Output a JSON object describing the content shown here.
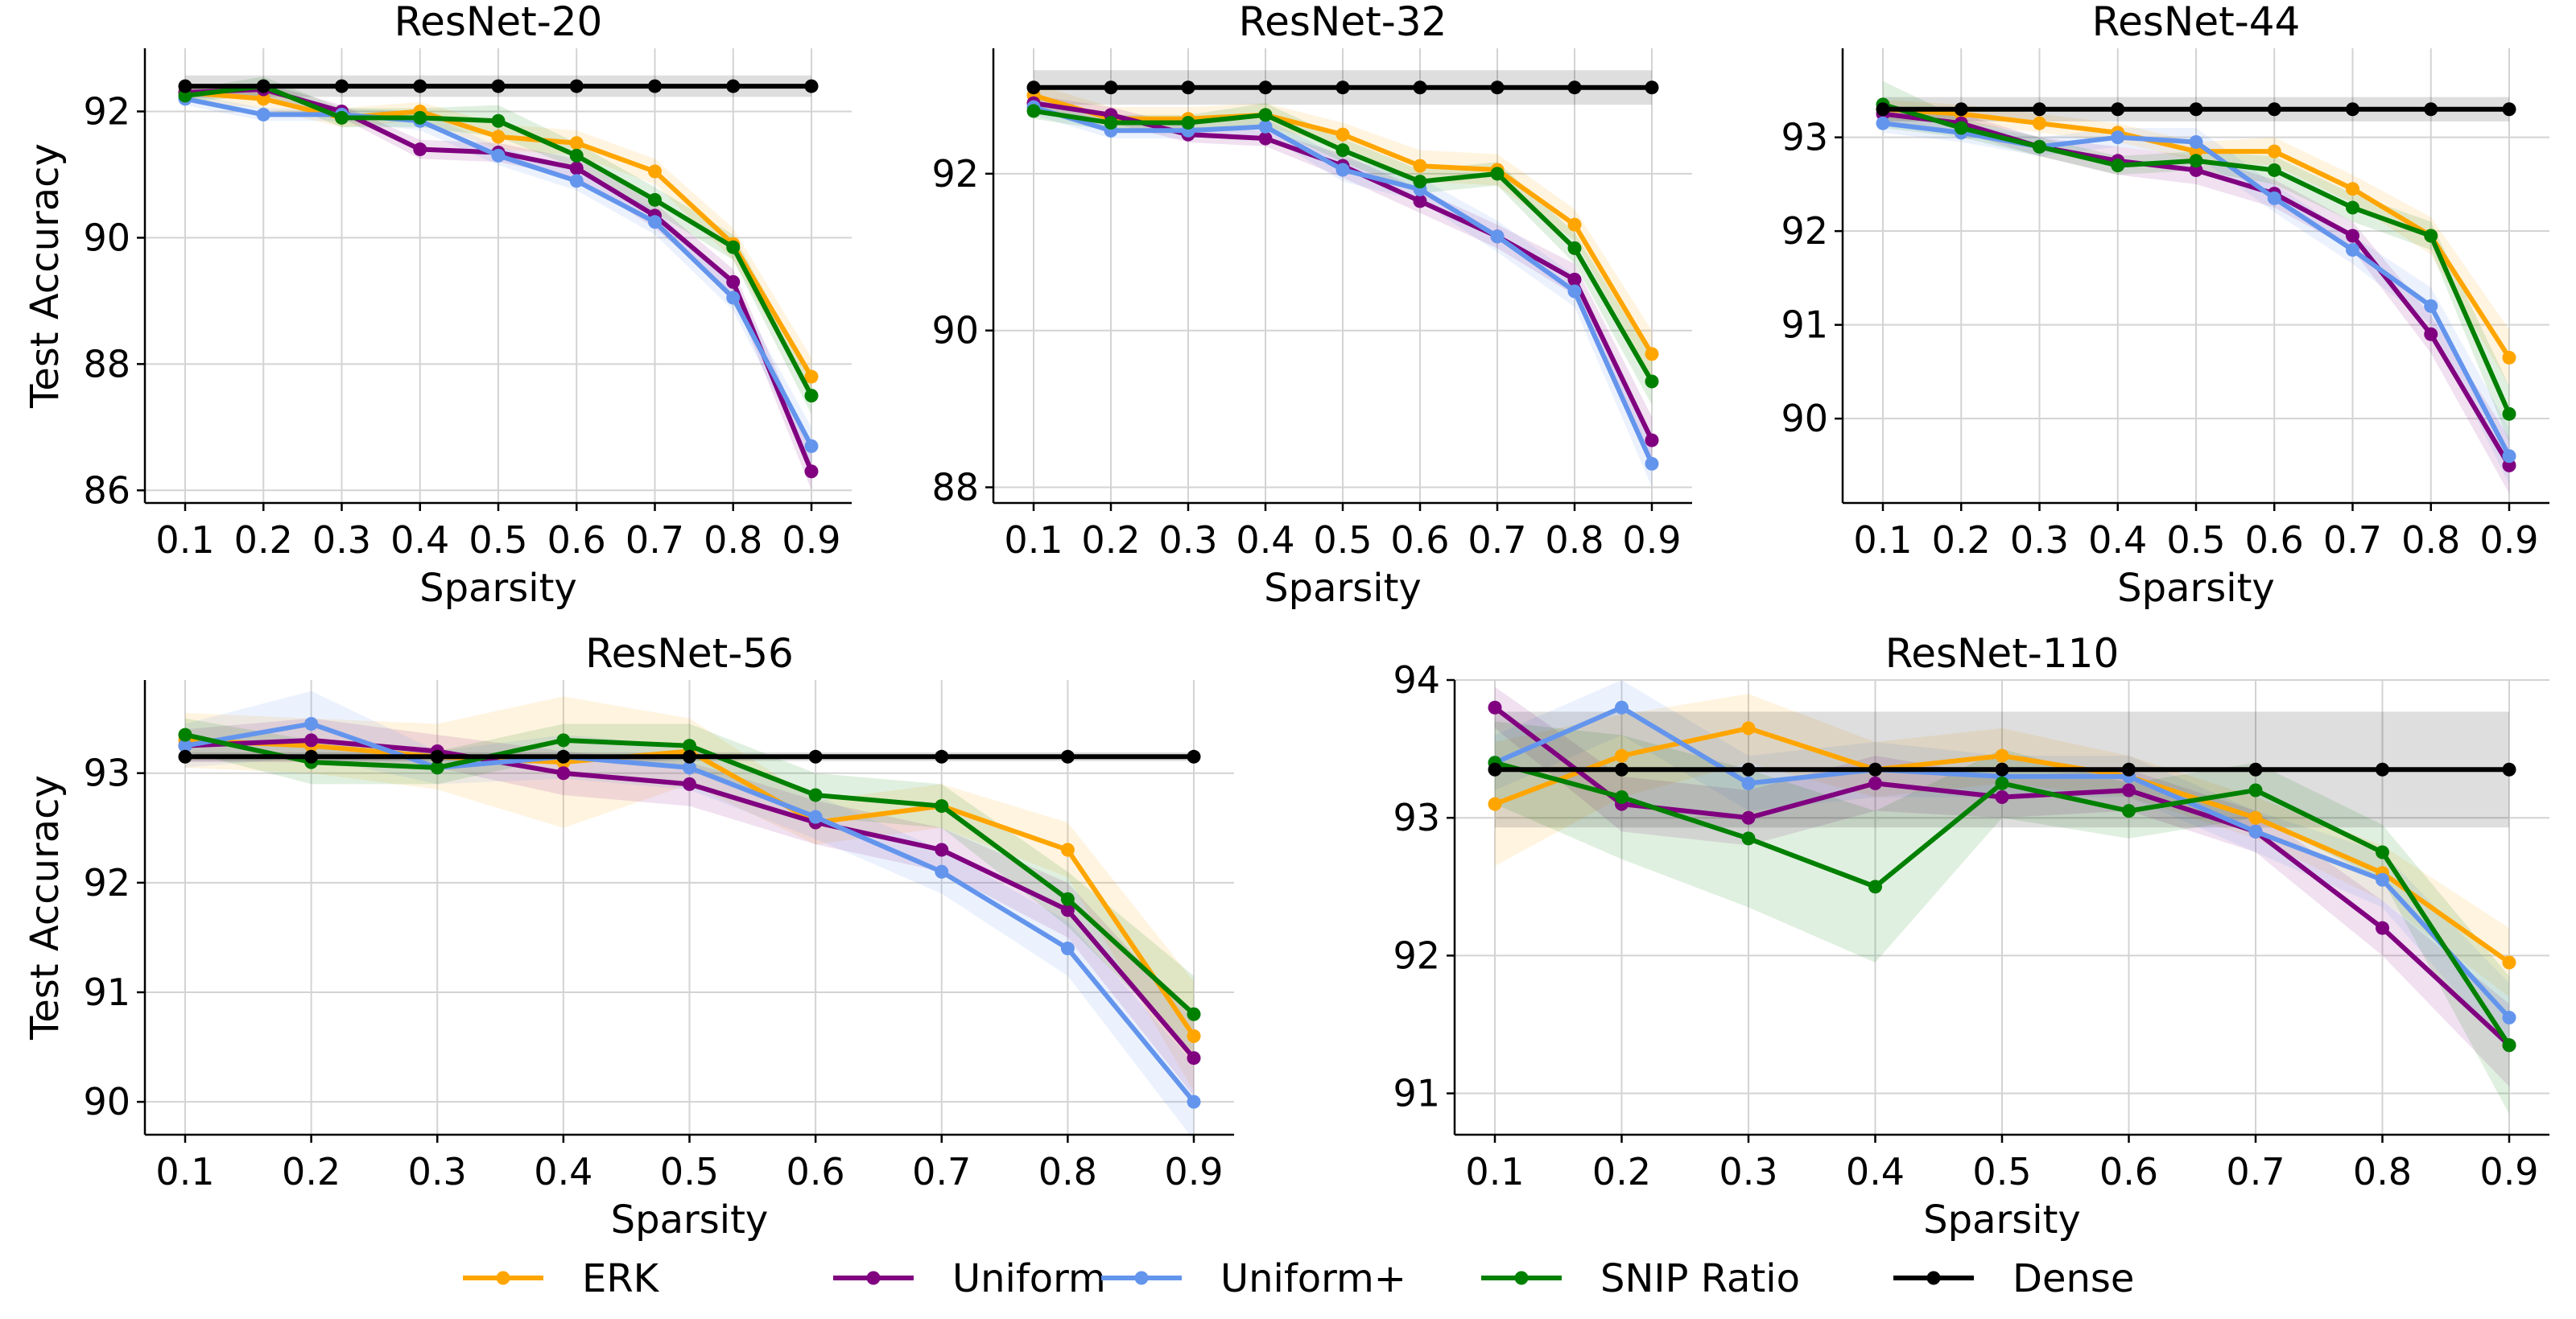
{
  "legend": [
    {
      "label": "ERK",
      "color": "#FFA500"
    },
    {
      "label": "Uniform",
      "color": "#800080"
    },
    {
      "label": "Uniform+",
      "color": "#6495ED"
    },
    {
      "label": "SNIP Ratio",
      "color": "#008000"
    },
    {
      "label": "Dense",
      "color": "#000000"
    }
  ],
  "chart_data": [
    {
      "type": "line",
      "title": "ResNet-20",
      "xlabel": "Sparsity",
      "ylabel": "Test Accuracy",
      "x": [
        0.1,
        0.2,
        0.3,
        0.4,
        0.5,
        0.6,
        0.7,
        0.8,
        0.9
      ],
      "xticks": [
        "0.1",
        "0.2",
        "0.3",
        "0.4",
        "0.5",
        "0.6",
        "0.7",
        "0.8",
        "0.9"
      ],
      "yticks": [
        "86",
        "88",
        "90",
        "92"
      ],
      "ylim": [
        85.8,
        93.0
      ],
      "grid": true,
      "series": [
        {
          "name": "ERK",
          "color": "#FFA500",
          "values": [
            92.3,
            92.2,
            91.9,
            92.0,
            91.6,
            91.5,
            91.05,
            89.9,
            87.8
          ],
          "band": [
            0.15,
            0.15,
            0.15,
            0.15,
            0.2,
            0.2,
            0.2,
            0.25,
            0.3
          ]
        },
        {
          "name": "Uniform",
          "color": "#800080",
          "values": [
            92.3,
            92.35,
            92.0,
            91.4,
            91.35,
            91.1,
            90.35,
            89.3,
            86.3
          ],
          "band": [
            0.1,
            0.1,
            0.1,
            0.15,
            0.15,
            0.15,
            0.2,
            0.2,
            0.3
          ]
        },
        {
          "name": "Uniform+",
          "color": "#6495ED",
          "values": [
            92.2,
            91.95,
            91.95,
            91.85,
            91.3,
            90.9,
            90.25,
            89.05,
            86.7
          ],
          "band": [
            0.1,
            0.1,
            0.1,
            0.15,
            0.15,
            0.15,
            0.2,
            0.2,
            0.3
          ]
        },
        {
          "name": "SNIP Ratio",
          "color": "#008000",
          "values": [
            92.25,
            92.4,
            91.9,
            91.9,
            91.85,
            91.3,
            90.6,
            89.85,
            87.5
          ],
          "band": [
            0.1,
            0.15,
            0.15,
            0.15,
            0.25,
            0.2,
            0.2,
            0.2,
            0.3
          ]
        },
        {
          "name": "Dense",
          "color": "#000000",
          "values": [
            92.4,
            92.4,
            92.4,
            92.4,
            92.4,
            92.4,
            92.4,
            92.4,
            92.4
          ],
          "band": [
            0.17,
            0.17,
            0.17,
            0.17,
            0.17,
            0.17,
            0.17,
            0.17,
            0.17
          ]
        }
      ]
    },
    {
      "type": "line",
      "title": "ResNet-32",
      "xlabel": "Sparsity",
      "ylabel": "",
      "x": [
        0.1,
        0.2,
        0.3,
        0.4,
        0.5,
        0.6,
        0.7,
        0.8,
        0.9
      ],
      "xticks": [
        "0.1",
        "0.2",
        "0.3",
        "0.4",
        "0.5",
        "0.6",
        "0.7",
        "0.8",
        "0.9"
      ],
      "yticks": [
        "88",
        "90",
        "92"
      ],
      "ylim": [
        87.8,
        93.6
      ],
      "grid": true,
      "series": [
        {
          "name": "ERK",
          "color": "#FFA500",
          "values": [
            93.0,
            92.7,
            92.7,
            92.75,
            92.5,
            92.1,
            92.05,
            91.35,
            89.7
          ],
          "band": [
            0.15,
            0.15,
            0.15,
            0.15,
            0.15,
            0.2,
            0.2,
            0.2,
            0.3
          ]
        },
        {
          "name": "Uniform",
          "color": "#800080",
          "values": [
            92.9,
            92.75,
            92.5,
            92.45,
            92.1,
            91.65,
            91.2,
            90.65,
            88.6
          ],
          "band": [
            0.1,
            0.1,
            0.1,
            0.1,
            0.15,
            0.15,
            0.15,
            0.2,
            0.3
          ]
        },
        {
          "name": "Uniform+",
          "color": "#6495ED",
          "values": [
            92.85,
            92.55,
            92.55,
            92.6,
            92.05,
            91.8,
            91.2,
            90.5,
            88.3
          ],
          "band": [
            0.1,
            0.1,
            0.1,
            0.1,
            0.15,
            0.15,
            0.2,
            0.2,
            0.3
          ]
        },
        {
          "name": "SNIP Ratio",
          "color": "#008000",
          "values": [
            92.8,
            92.65,
            92.65,
            92.75,
            92.3,
            91.9,
            92.0,
            91.05,
            89.35
          ],
          "band": [
            0.1,
            0.1,
            0.1,
            0.15,
            0.15,
            0.15,
            0.15,
            0.2,
            0.3
          ]
        },
        {
          "name": "Dense",
          "color": "#000000",
          "values": [
            93.1,
            93.1,
            93.1,
            93.1,
            93.1,
            93.1,
            93.1,
            93.1,
            93.1
          ],
          "band": [
            0.22,
            0.22,
            0.22,
            0.22,
            0.22,
            0.22,
            0.22,
            0.22,
            0.22
          ]
        }
      ]
    },
    {
      "type": "line",
      "title": "ResNet-44",
      "xlabel": "Sparsity",
      "ylabel": "",
      "x": [
        0.1,
        0.2,
        0.3,
        0.4,
        0.5,
        0.6,
        0.7,
        0.8,
        0.9
      ],
      "xticks": [
        "0.1",
        "0.2",
        "0.3",
        "0.4",
        "0.5",
        "0.6",
        "0.7",
        "0.8",
        "0.9"
      ],
      "yticks": [
        "90",
        "91",
        "92",
        "93"
      ],
      "ylim": [
        89.1,
        93.95
      ],
      "grid": true,
      "series": [
        {
          "name": "ERK",
          "color": "#FFA500",
          "values": [
            93.3,
            93.25,
            93.15,
            93.05,
            92.85,
            92.85,
            92.45,
            91.95,
            90.65
          ],
          "band": [
            0.1,
            0.1,
            0.1,
            0.1,
            0.1,
            0.15,
            0.15,
            0.2,
            0.3
          ]
        },
        {
          "name": "Uniform",
          "color": "#800080",
          "values": [
            93.25,
            93.15,
            92.9,
            92.75,
            92.65,
            92.4,
            91.95,
            90.9,
            89.5
          ],
          "band": [
            0.1,
            0.1,
            0.1,
            0.15,
            0.15,
            0.15,
            0.15,
            0.2,
            0.3
          ]
        },
        {
          "name": "Uniform+",
          "color": "#6495ED",
          "values": [
            93.15,
            93.05,
            92.9,
            93.0,
            92.95,
            92.35,
            91.8,
            91.2,
            89.6
          ],
          "band": [
            0.1,
            0.1,
            0.1,
            0.1,
            0.15,
            0.15,
            0.15,
            0.2,
            0.3
          ]
        },
        {
          "name": "SNIP Ratio",
          "color": "#008000",
          "values": [
            93.35,
            93.1,
            92.9,
            92.7,
            92.75,
            92.65,
            92.25,
            91.95,
            90.05
          ],
          "band": [
            0.25,
            0.1,
            0.1,
            0.1,
            0.1,
            0.15,
            0.15,
            0.15,
            0.3
          ]
        },
        {
          "name": "Dense",
          "color": "#000000",
          "values": [
            93.3,
            93.3,
            93.3,
            93.3,
            93.3,
            93.3,
            93.3,
            93.3,
            93.3
          ],
          "band": [
            0.13,
            0.13,
            0.13,
            0.13,
            0.13,
            0.13,
            0.13,
            0.13,
            0.13
          ]
        }
      ]
    },
    {
      "type": "line",
      "title": "ResNet-56",
      "xlabel": "Sparsity",
      "ylabel": "Test Accuracy",
      "x": [
        0.1,
        0.2,
        0.3,
        0.4,
        0.5,
        0.6,
        0.7,
        0.8,
        0.9
      ],
      "xticks": [
        "0.1",
        "0.2",
        "0.3",
        "0.4",
        "0.5",
        "0.6",
        "0.7",
        "0.8",
        "0.9"
      ],
      "yticks": [
        "90",
        "91",
        "92",
        "93"
      ],
      "ylim": [
        89.7,
        93.85
      ],
      "grid": true,
      "series": [
        {
          "name": "ERK",
          "color": "#FFA500",
          "values": [
            93.3,
            93.25,
            93.15,
            93.1,
            93.2,
            92.55,
            92.7,
            92.3,
            90.6
          ],
          "band": [
            0.25,
            0.25,
            0.3,
            0.6,
            0.3,
            0.2,
            0.2,
            0.25,
            0.5
          ]
        },
        {
          "name": "Uniform",
          "color": "#800080",
          "values": [
            93.25,
            93.3,
            93.2,
            93.0,
            92.9,
            92.55,
            92.3,
            91.75,
            90.4
          ],
          "band": [
            0.15,
            0.2,
            0.15,
            0.2,
            0.2,
            0.2,
            0.2,
            0.25,
            0.35
          ]
        },
        {
          "name": "Uniform+",
          "color": "#6495ED",
          "values": [
            93.25,
            93.45,
            93.05,
            93.15,
            93.05,
            92.6,
            92.1,
            91.4,
            90.0
          ],
          "band": [
            0.2,
            0.3,
            0.15,
            0.2,
            0.2,
            0.2,
            0.2,
            0.25,
            0.35
          ]
        },
        {
          "name": "SNIP Ratio",
          "color": "#008000",
          "values": [
            93.35,
            93.1,
            93.05,
            93.3,
            93.25,
            92.8,
            92.7,
            91.85,
            90.8
          ],
          "band": [
            0.15,
            0.2,
            0.15,
            0.15,
            0.2,
            0.2,
            0.2,
            0.25,
            0.35
          ]
        },
        {
          "name": "Dense",
          "color": "#000000",
          "values": [
            93.15,
            93.15,
            93.15,
            93.15,
            93.15,
            93.15,
            93.15,
            93.15,
            93.15
          ],
          "band": [
            0.04,
            0.04,
            0.04,
            0.04,
            0.04,
            0.04,
            0.04,
            0.04,
            0.04
          ]
        }
      ]
    },
    {
      "type": "line",
      "title": "ResNet-110",
      "xlabel": "Sparsity",
      "ylabel": "",
      "x": [
        0.1,
        0.2,
        0.3,
        0.4,
        0.5,
        0.6,
        0.7,
        0.8,
        0.9
      ],
      "xticks": [
        "0.1",
        "0.2",
        "0.3",
        "0.4",
        "0.5",
        "0.6",
        "0.7",
        "0.8",
        "0.9"
      ],
      "yticks": [
        "91",
        "92",
        "93",
        "94"
      ],
      "ylim": [
        90.7,
        94.0
      ],
      "grid": true,
      "series": [
        {
          "name": "ERK",
          "color": "#FFA500",
          "values": [
            93.1,
            93.45,
            93.65,
            93.35,
            93.45,
            93.3,
            93.0,
            92.6,
            91.95
          ],
          "band": [
            0.45,
            0.3,
            0.25,
            0.2,
            0.2,
            0.15,
            0.15,
            0.2,
            0.25
          ]
        },
        {
          "name": "Uniform",
          "color": "#800080",
          "values": [
            93.8,
            93.1,
            93.0,
            93.25,
            93.15,
            93.2,
            92.9,
            92.2,
            91.35
          ],
          "band": [
            0.15,
            0.2,
            0.2,
            0.2,
            0.15,
            0.15,
            0.15,
            0.2,
            0.3
          ]
        },
        {
          "name": "Uniform+",
          "color": "#6495ED",
          "values": [
            93.4,
            93.8,
            93.25,
            93.35,
            93.3,
            93.3,
            92.9,
            92.55,
            91.55
          ],
          "band": [
            0.2,
            0.2,
            0.2,
            0.2,
            0.15,
            0.15,
            0.15,
            0.2,
            0.25
          ]
        },
        {
          "name": "SNIP Ratio",
          "color": "#008000",
          "values": [
            93.4,
            93.15,
            92.85,
            92.5,
            93.25,
            93.05,
            93.2,
            92.75,
            91.35
          ],
          "band": [
            0.3,
            0.45,
            0.5,
            0.55,
            0.25,
            0.2,
            0.2,
            0.2,
            0.5
          ]
        },
        {
          "name": "Dense",
          "color": "#000000",
          "values": [
            93.35,
            93.35,
            93.35,
            93.35,
            93.35,
            93.35,
            93.35,
            93.35,
            93.35
          ],
          "band": [
            0.42,
            0.42,
            0.42,
            0.42,
            0.42,
            0.42,
            0.42,
            0.42,
            0.42
          ]
        }
      ]
    }
  ]
}
